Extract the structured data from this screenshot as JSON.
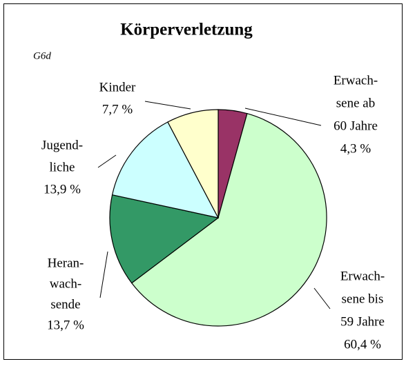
{
  "chart_data": {
    "type": "pie",
    "title": "Körperverletzung",
    "subtitle": "G6d",
    "categories": [
      [
        "Erwach-",
        "sene ab",
        "60 Jahre"
      ],
      [
        "Erwach-",
        "sene bis",
        "59 Jahre"
      ],
      [
        "Heran-",
        "wach-",
        "sende"
      ],
      [
        "Jugend-",
        "liche"
      ],
      [
        "Kinder"
      ]
    ],
    "values": [
      4.3,
      60.4,
      13.7,
      13.9,
      7.7
    ],
    "value_labels": [
      "4,3 %",
      "60,4 %",
      "13,7 %",
      "13,9 %",
      "7,7 %"
    ],
    "colors": [
      "#993366",
      "#ccffcc",
      "#339966",
      "#ccffff",
      "#ffffcc"
    ]
  }
}
